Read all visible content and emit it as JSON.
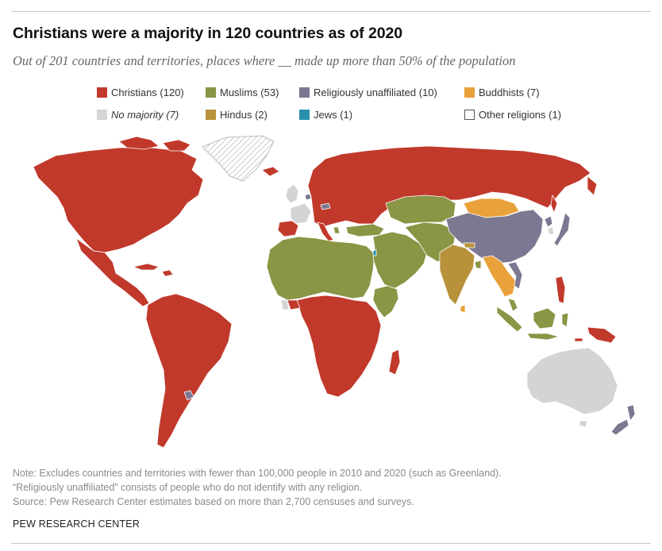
{
  "title": "Christians were a majority in 120 countries as of 2020",
  "subtitle": "Out of 201 countries and territories, places where __ made up more than 50% of the population",
  "legend": [
    {
      "id": "christians",
      "label": "Christians (120)",
      "color": "#c1392b",
      "italic": false
    },
    {
      "id": "muslims",
      "label": "Muslims (53)",
      "color": "#8a9545",
      "italic": false
    },
    {
      "id": "unaffiliated",
      "label": "Religiously unaffiliated (10)",
      "color": "#7d7891",
      "italic": false
    },
    {
      "id": "buddhists",
      "label": "Buddhists (7)",
      "color": "#e9a23b",
      "italic": false
    },
    {
      "id": "no_majority",
      "label": "No majority (7)",
      "color": "#d4d4d4",
      "italic": true
    },
    {
      "id": "hindus",
      "label": "Hindus (2)",
      "color": "#b8913a",
      "italic": false
    },
    {
      "id": "jews",
      "label": "Jews (1)",
      "color": "#2a8fad",
      "italic": false
    },
    {
      "id": "other",
      "label": "Other religions (1)",
      "color": "#ffffff",
      "italic": false
    }
  ],
  "colors": {
    "christians": "#c1392b",
    "muslims": "#8a9545",
    "unaffiliated": "#7d7891",
    "buddhists": "#e9a23b",
    "no_majority": "#d4d4d4",
    "hindus": "#b8913a",
    "jews": "#2a8fad",
    "greenland_hatch": "#bdbdbd"
  },
  "notes": [
    "Note: Excludes countries and territories with fewer than 100,000 people in 2010 and 2020 (such as Greenland).",
    "“Religiously unaffiliated” consists of people who do not identify with any religion.",
    "Source: Pew Research Center estimates based on more than 2,700 censuses and surveys."
  ],
  "credit": "PEW RESEARCH CENTER"
}
